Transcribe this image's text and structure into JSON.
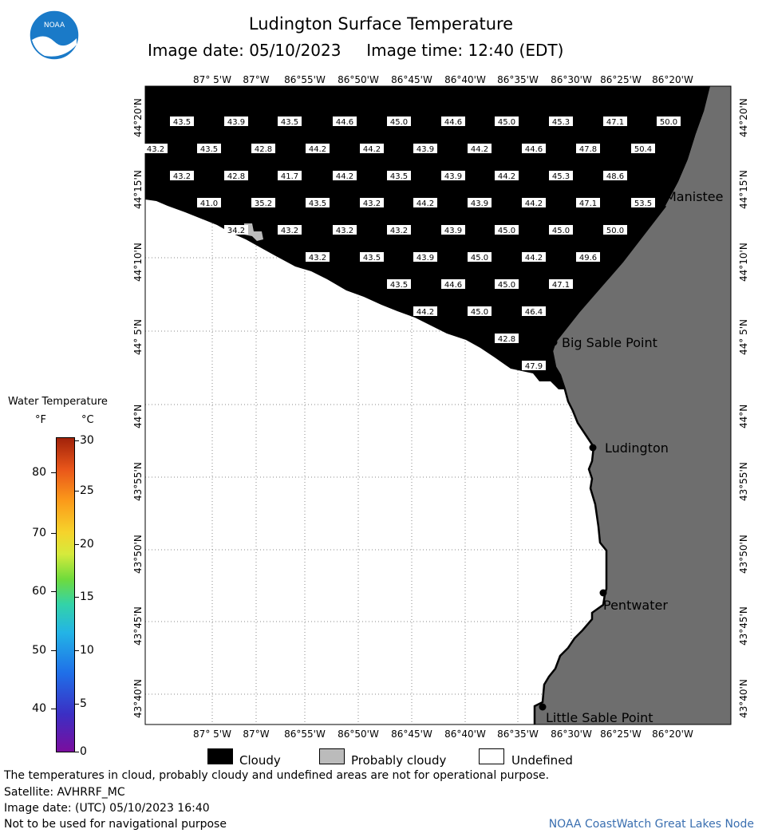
{
  "header": {
    "title": "Ludington Surface Temperature",
    "subtitle": "Image date: 05/10/2023     Image time: 12:40 (EDT)",
    "logo_text": "NOAA"
  },
  "map": {
    "lon_labels": [
      "87° 5'W",
      "87°W",
      "86°55'W",
      "86°50'W",
      "86°45'W",
      "86°40'W",
      "86°35'W",
      "86°30'W",
      "86°25'W",
      "86°20'W"
    ],
    "lat_labels": [
      "44°20'N",
      "44°15'N",
      "44°10'N",
      "44° 5'N",
      "44°N",
      "43°55'N",
      "43°50'N",
      "43°45'N",
      "43°40'N"
    ],
    "cities": [
      "Manistee",
      "Big Sable Point",
      "Ludington",
      "Pentwater",
      "Little Sable Point"
    ],
    "temperature_rows": [
      [
        "43.5",
        "43.9",
        "43.5",
        "44.6",
        "45.0",
        "44.6",
        "45.0",
        "45.3",
        "47.1",
        "50.0"
      ],
      [
        "43.2",
        "43.5",
        "42.8",
        "44.2",
        "44.2",
        "43.9",
        "44.2",
        "44.6",
        "47.8",
        "50.4"
      ],
      [
        "43.2",
        "42.8",
        "41.7",
        "44.2",
        "43.5",
        "43.9",
        "44.2",
        "45.3",
        "48.6"
      ],
      [
        "41.0",
        "35.2",
        "43.5",
        "43.2",
        "44.2",
        "43.9",
        "44.2",
        "47.1",
        "53.5"
      ],
      [
        "34.2",
        "43.2",
        "43.2",
        "43.2",
        "43.9",
        "45.0",
        "45.0",
        "50.0"
      ],
      [
        "43.2",
        "43.5",
        "43.9",
        "45.0",
        "44.2",
        "49.6"
      ],
      [
        "43.5",
        "44.6",
        "45.0",
        "47.1"
      ],
      [
        "44.2",
        "45.0",
        "46.4"
      ],
      [
        "42.8"
      ],
      [
        "47.9"
      ]
    ],
    "colors": {
      "cloudy": "#000000",
      "land": "#6e6e6e",
      "water_undefined": "#ffffff",
      "grid": "#888888"
    }
  },
  "legend": {
    "title": "Water Temperature",
    "unit_f": "°F",
    "unit_c": "°C",
    "f_ticks": [
      "80",
      "70",
      "60",
      "50",
      "40"
    ],
    "c_ticks": [
      "30",
      "25",
      "20",
      "15",
      "10",
      "5",
      "0"
    ]
  },
  "key": {
    "cloudy": "Cloudy",
    "probably_cloudy": "Probably cloudy",
    "undefined": "Undefined"
  },
  "footer": {
    "note": "The temperatures in cloud, probably cloudy and undefined areas are not for operational purpose.",
    "satellite": "Satellite: AVHRRF_MC",
    "utc_date": "Image date: (UTC) 05/10/2023  16:40",
    "disclaimer": "Not to be used for navigational purpose",
    "credit": "NOAA CoastWatch Great Lakes Node"
  }
}
